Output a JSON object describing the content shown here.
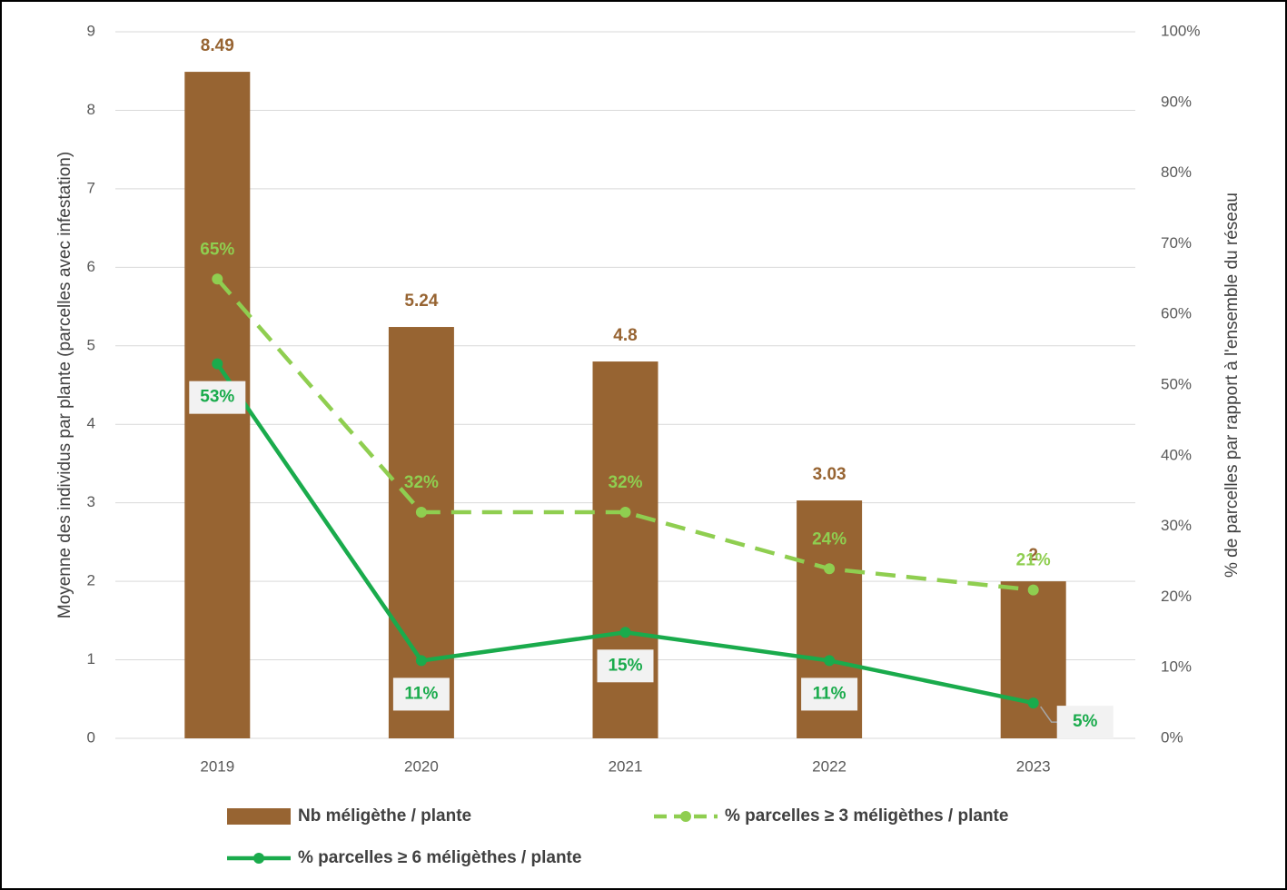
{
  "chart_data": {
    "type": "bar",
    "categories": [
      "2019",
      "2020",
      "2021",
      "2022",
      "2023"
    ],
    "y_label": "Moyenne des individus par plante (parcelles avec infestation)",
    "y2_label": "% de parcelles par rapport à l'ensemble du réseau",
    "ylim": [
      0,
      9
    ],
    "yticks": [
      0,
      1,
      2,
      3,
      4,
      5,
      6,
      7,
      8,
      9
    ],
    "y2lim": [
      0,
      100
    ],
    "y2ticks": [
      {
        "value": 0,
        "label": "0%"
      },
      {
        "value": 10,
        "label": "10%"
      },
      {
        "value": 20,
        "label": "20%"
      },
      {
        "value": 30,
        "label": "30%"
      },
      {
        "value": 40,
        "label": "40%"
      },
      {
        "value": 50,
        "label": "50%"
      },
      {
        "value": 60,
        "label": "60%"
      },
      {
        "value": 70,
        "label": "70%"
      },
      {
        "value": 80,
        "label": "80%"
      },
      {
        "value": 90,
        "label": "90%"
      },
      {
        "value": 100,
        "label": "100%"
      }
    ],
    "grid": true,
    "legend": "bottom",
    "series": [
      {
        "name": "Nb méligèthe / plante",
        "type": "bar",
        "color": "#976432",
        "values": [
          8.49,
          5.24,
          4.8,
          3.03,
          2
        ]
      },
      {
        "name": "% parcelles ≥ 3 méligèthes / plante",
        "type": "line",
        "dashed": true,
        "axis": "y2",
        "color": "#8fce50",
        "values": [
          65,
          32,
          32,
          24,
          21
        ],
        "value_labels": [
          "65%",
          "32%",
          "32%",
          "24%",
          "21%"
        ]
      },
      {
        "name": "% parcelles ≥ 6 méligèthes / plante",
        "type": "line",
        "axis": "y2",
        "color": "#1aab4c",
        "values": [
          53,
          11,
          15,
          11,
          5
        ],
        "value_labels": [
          "53%",
          "11%",
          "15%",
          "11%",
          "5%"
        ]
      }
    ]
  }
}
